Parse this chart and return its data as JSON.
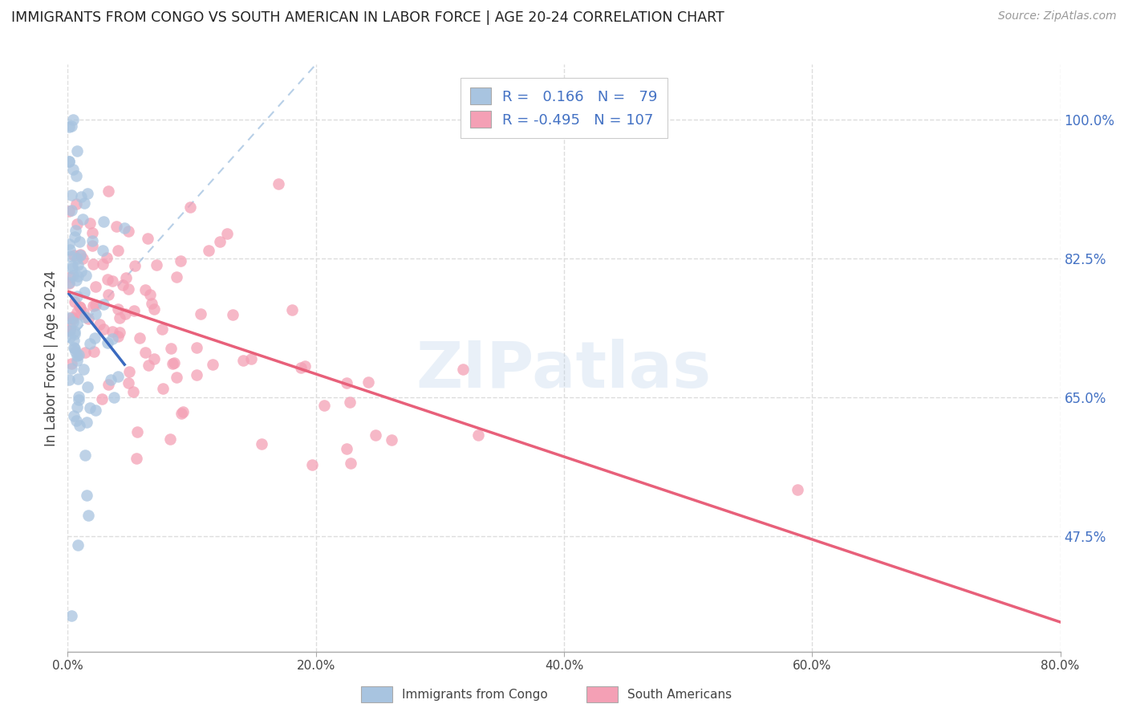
{
  "title": "IMMIGRANTS FROM CONGO VS SOUTH AMERICAN IN LABOR FORCE | AGE 20-24 CORRELATION CHART",
  "source": "Source: ZipAtlas.com",
  "ylabel_label": "In Labor Force | Age 20-24",
  "x_tick_labels": [
    "0.0%",
    "20.0%",
    "40.0%",
    "60.0%",
    "80.0%"
  ],
  "x_tick_positions": [
    0.0,
    0.2,
    0.4,
    0.6,
    0.8
  ],
  "y_tick_labels": [
    "47.5%",
    "65.0%",
    "82.5%",
    "100.0%"
  ],
  "y_tick_positions": [
    0.475,
    0.65,
    0.825,
    1.0
  ],
  "xlim": [
    0.0,
    0.8
  ],
  "ylim": [
    0.33,
    1.07
  ],
  "congo_R": 0.166,
  "congo_N": 79,
  "sa_R": -0.495,
  "sa_N": 107,
  "congo_color": "#a8c4e0",
  "sa_color": "#f4a0b5",
  "congo_line_color": "#3a6abf",
  "sa_line_color": "#e8607a",
  "legend_label_congo": "Immigrants from Congo",
  "legend_label_sa": "South Americans",
  "watermark": "ZIPatlas"
}
